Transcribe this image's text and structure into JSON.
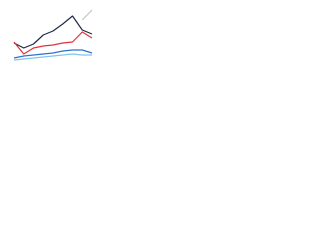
{
  "chart_data": {
    "type": "line",
    "categories": [
      null,
      null,
      null,
      null,
      null,
      null,
      null,
      null,
      null
    ],
    "ylim": [
      0,
      62
    ],
    "series": [
      {
        "color": "#1f2a44",
        "values": [
          25,
          20,
          24,
          33,
          37,
          44,
          52,
          38,
          34
        ]
      },
      {
        "color": "#c0c4c8",
        "values": [
          null,
          null,
          null,
          null,
          null,
          null,
          null,
          48,
          58
        ]
      },
      {
        "color": "#e0323c",
        "values": [
          26,
          14,
          20,
          22,
          23,
          25,
          26,
          36,
          30
        ]
      },
      {
        "color": "#2f6fd0",
        "values": [
          10,
          12,
          13,
          14,
          15,
          17,
          18,
          18,
          15
        ]
      },
      {
        "color": "#7fc4ec",
        "values": [
          8,
          9,
          10,
          11,
          12,
          13,
          14,
          13,
          13
        ]
      }
    ]
  }
}
